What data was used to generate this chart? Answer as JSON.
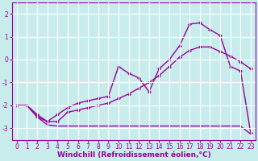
{
  "xlabel": "Windchill (Refroidissement éolien,°C)",
  "bg_color": "#c8ecec",
  "grid_color": "#ffffff",
  "line_color": "#990099",
  "xlim": [
    -0.5,
    23.5
  ],
  "ylim": [
    -3.5,
    2.5
  ],
  "yticks": [
    2,
    1,
    0,
    -1,
    -2,
    -3
  ],
  "xticks": [
    0,
    1,
    2,
    3,
    4,
    5,
    6,
    7,
    8,
    9,
    10,
    11,
    12,
    13,
    14,
    15,
    16,
    17,
    18,
    19,
    20,
    21,
    22,
    23
  ],
  "line1_y": [
    -2.0,
    -2.0,
    -2.5,
    -2.7,
    -2.4,
    -2.1,
    -1.9,
    -1.8,
    -1.7,
    -1.6,
    -0.3,
    -0.6,
    -0.8,
    -1.4,
    -0.4,
    0.0,
    0.6,
    1.55,
    1.6,
    1.3,
    1.05,
    -0.3,
    -0.5,
    -3.2
  ],
  "line2_y": [
    -2.0,
    -2.0,
    -2.4,
    -2.7,
    -2.7,
    -2.3,
    -2.2,
    -2.1,
    -2.0,
    -1.9,
    -1.7,
    -1.5,
    -1.25,
    -1.0,
    -0.7,
    -0.3,
    0.1,
    0.4,
    0.55,
    0.55,
    0.35,
    0.15,
    -0.1,
    -0.4
  ],
  "line3_y": [
    -2.0,
    -2.0,
    -2.5,
    -2.85,
    -2.9,
    -2.9,
    -2.9,
    -2.9,
    -2.9,
    -2.9,
    -2.9,
    -2.9,
    -2.9,
    -2.9,
    -2.9,
    -2.9,
    -2.9,
    -2.9,
    -2.9,
    -2.9,
    -2.9,
    -2.9,
    -2.9,
    -3.25
  ],
  "marker": "D",
  "marker_size": 2.5,
  "line_width": 1.0,
  "xlabel_fontsize": 6.5,
  "tick_fontsize": 5.5
}
